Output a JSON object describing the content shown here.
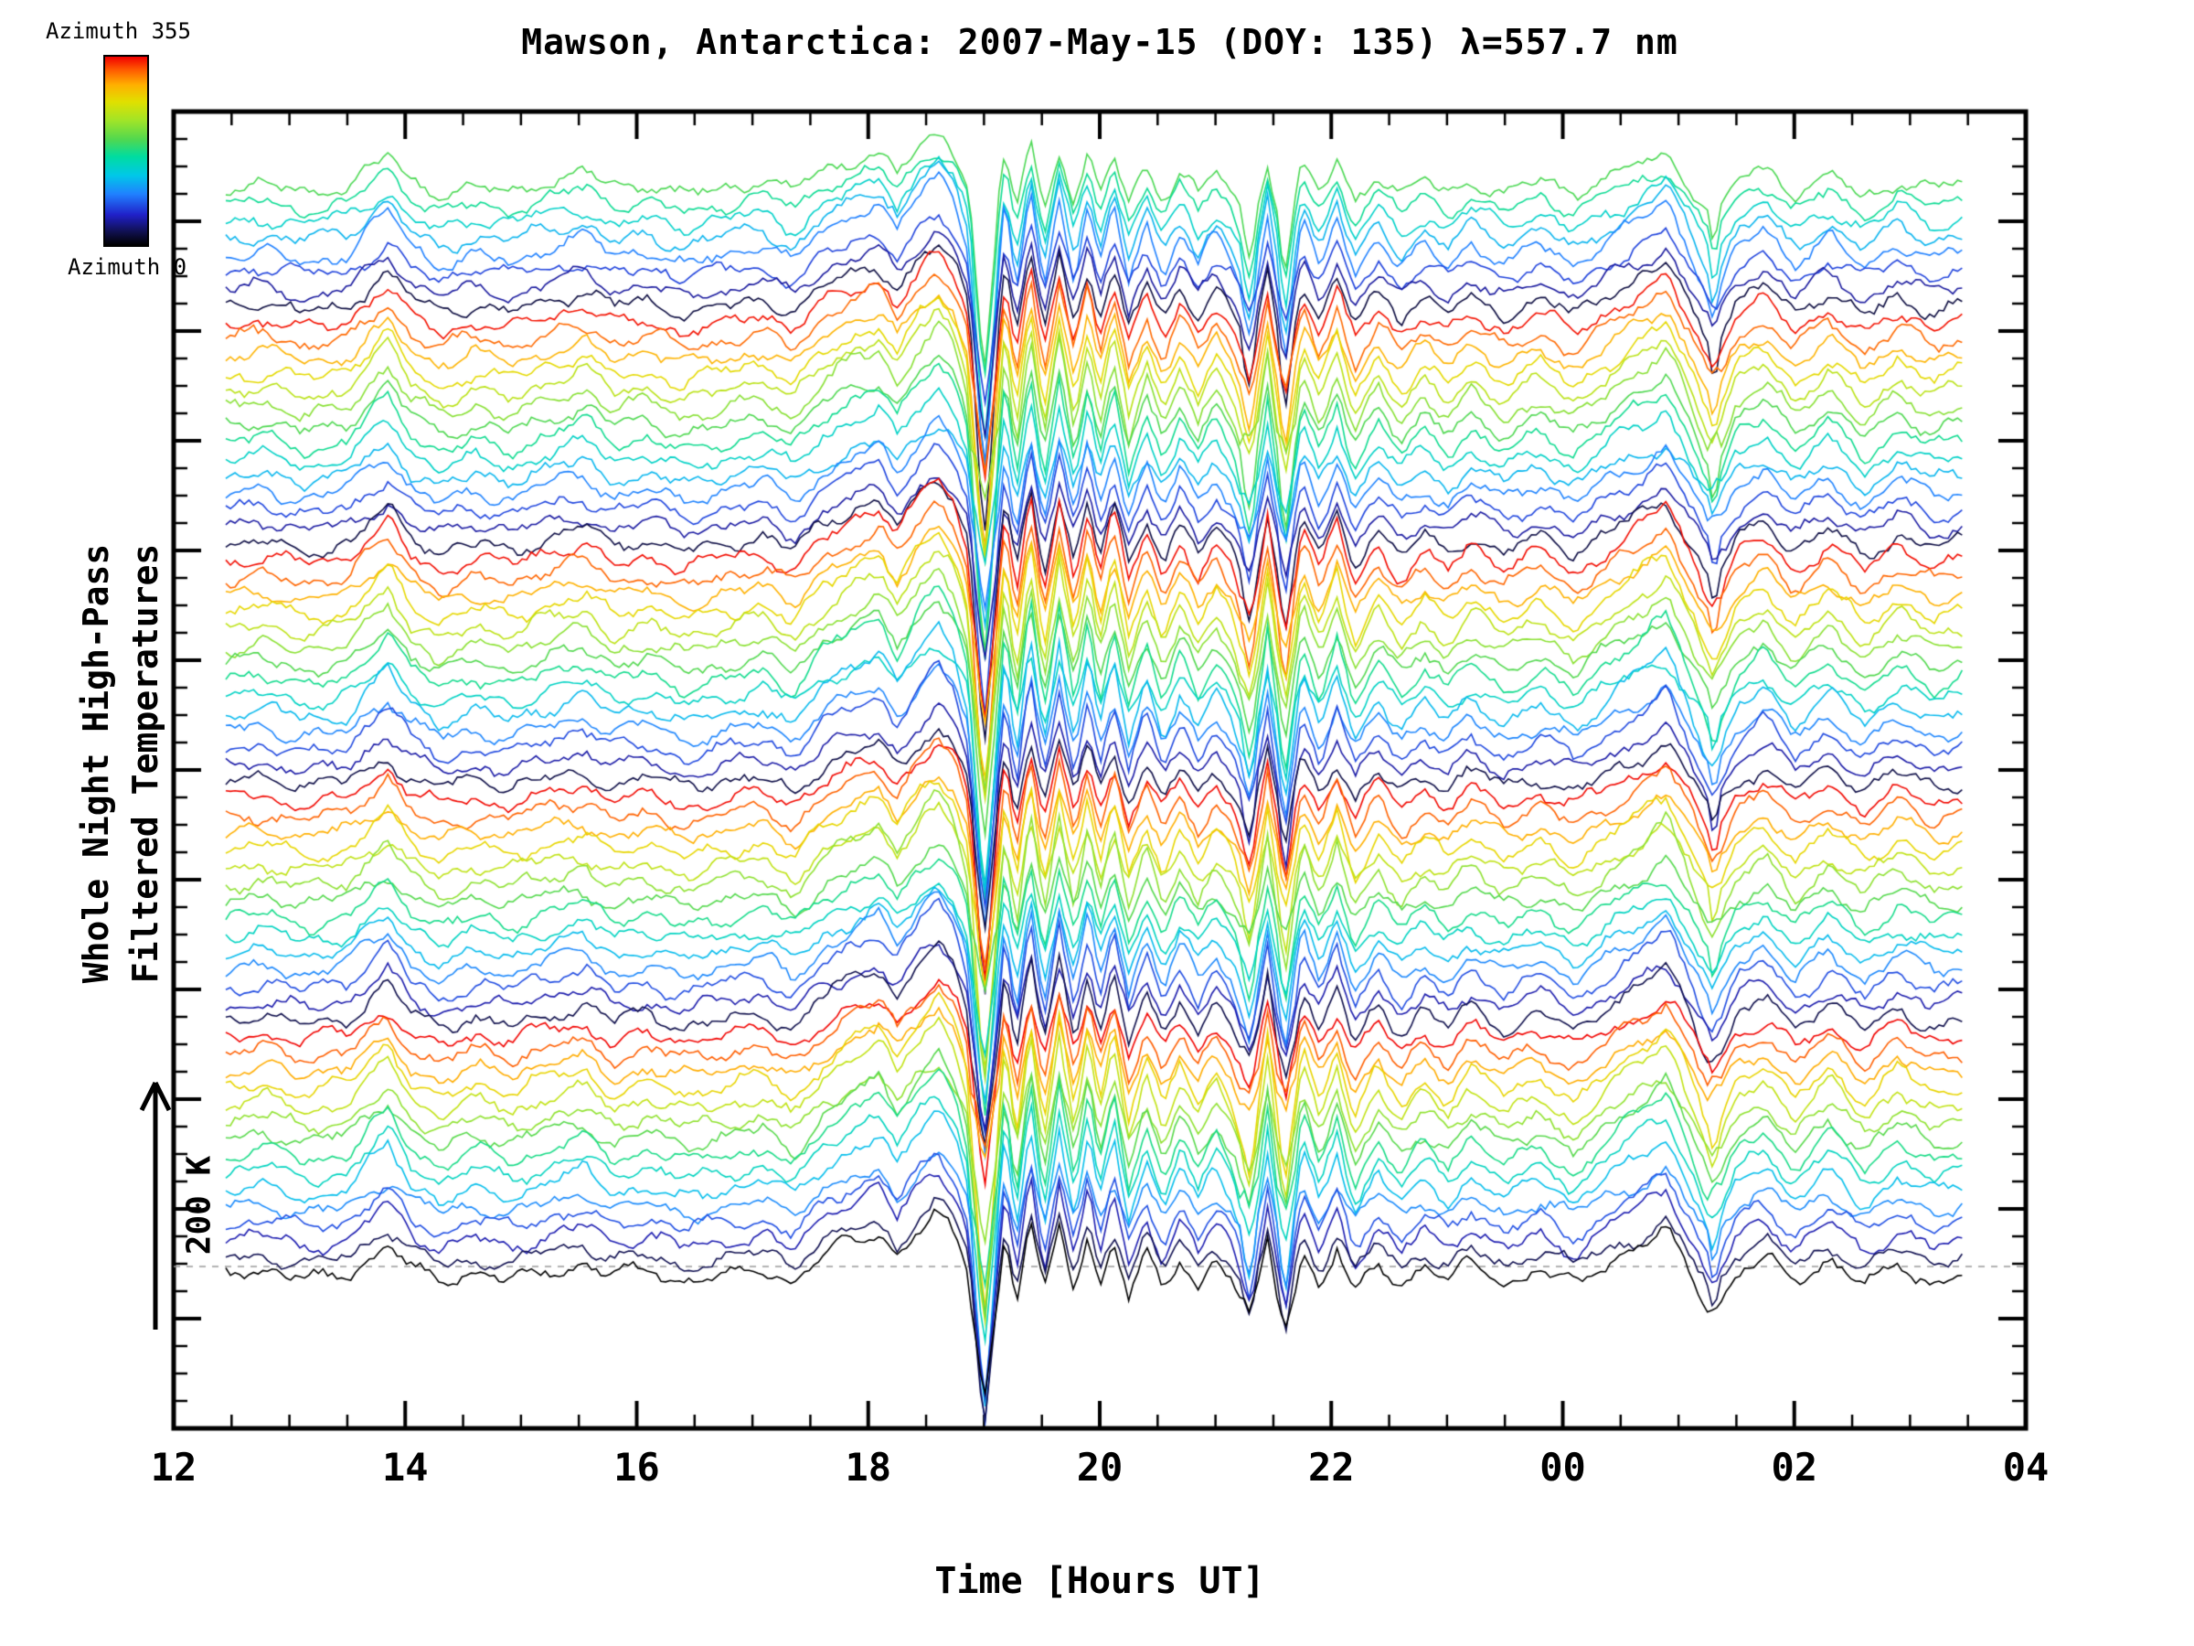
{
  "title": "Mawson, Antarctica: 2007-May-15 (DOY: 135) λ=557.7 nm",
  "colorbar": {
    "top_label": "Azimuth 355",
    "bottom_label": "Azimuth 0",
    "stops": [
      {
        "t": 0.0,
        "color": "#000000"
      },
      {
        "t": 0.07,
        "color": "#10104f"
      },
      {
        "t": 0.16,
        "color": "#2020c8"
      },
      {
        "t": 0.27,
        "color": "#2080ff"
      },
      {
        "t": 0.37,
        "color": "#00c8e8"
      },
      {
        "t": 0.47,
        "color": "#00dca0"
      },
      {
        "t": 0.56,
        "color": "#50d850"
      },
      {
        "t": 0.66,
        "color": "#a0e428"
      },
      {
        "t": 0.76,
        "color": "#e0e000"
      },
      {
        "t": 0.85,
        "color": "#ffb000"
      },
      {
        "t": 0.93,
        "color": "#ff5a00"
      },
      {
        "t": 1.0,
        "color": "#f00000"
      }
    ]
  },
  "y_axis": {
    "label_line1": "Whole Night High-Pass",
    "label_line2": "Filtered Temperatures"
  },
  "scale_bar": {
    "label": "200 K",
    "kelvin": 200
  },
  "x_axis": {
    "label": "Time [Hours UT]",
    "tick_labels": [
      "12",
      "14",
      "16",
      "18",
      "20",
      "22",
      "00",
      "02",
      "04"
    ],
    "tick_hours": [
      12,
      14,
      16,
      18,
      20,
      22,
      24,
      26,
      28
    ]
  },
  "chart_data": {
    "type": "line",
    "title": "Mawson, Antarctica: 2007-May-15 (DOY: 135) λ=557.7 nm",
    "xlabel": "Time [Hours UT]",
    "ylabel": "Whole Night High-Pass Filtered Temperatures",
    "x_range_hours_ut": [
      12,
      28
    ],
    "data_span_hours_ut": [
      12.45,
      27.45
    ],
    "x_tick_labels": [
      "12",
      "14",
      "16",
      "18",
      "20",
      "22",
      "00",
      "02",
      "04"
    ],
    "n_traces": 65,
    "azimuth_range_deg": [
      0,
      355
    ],
    "trace_vertical_offset_k": 15,
    "scale_bar_k": 200,
    "color_model": {
      "azimuth_top_trace": 200,
      "azimuth_step_per_trace": -25.625
    },
    "reference_line": {
      "style": "dashed",
      "color": "#999999",
      "position": "baseline of lowest trace"
    },
    "events": [
      {
        "time_ut": "13.9",
        "description": "small crest on all azimuth traces"
      },
      {
        "time_ut": "18.4-18.8",
        "description": "broad crest preceding main wave trough"
      },
      {
        "time_ut": "19.0",
        "description": "deep trough ~150-200 K seen on all azimuths"
      },
      {
        "time_ut": "19.0-20.5",
        "description": "quasi-periodic oscillations, ~15 min period"
      },
      {
        "time_ut": "21.3-21.7",
        "description": "two sharp troughs"
      },
      {
        "time_ut": "00.9",
        "description": "crest"
      },
      {
        "time_ut": "01.3",
        "description": "trough"
      }
    ],
    "base_signal_k": {
      "x_hours_ut": [
        12.45,
        12.8,
        13.1,
        13.5,
        13.85,
        14.05,
        14.3,
        14.6,
        14.9,
        15.2,
        15.55,
        15.8,
        16.1,
        16.4,
        16.8,
        17.1,
        17.35,
        17.6,
        17.9,
        18.1,
        18.25,
        18.45,
        18.6,
        18.75,
        18.85,
        18.95,
        19.0,
        19.08,
        19.18,
        19.28,
        19.4,
        19.52,
        19.65,
        19.78,
        19.9,
        20.0,
        20.12,
        20.25,
        20.4,
        20.55,
        20.7,
        20.85,
        21.0,
        21.15,
        21.3,
        21.45,
        21.6,
        21.75,
        21.9,
        22.05,
        22.2,
        22.4,
        22.6,
        22.8,
        23.0,
        23.2,
        23.5,
        23.8,
        24.1,
        24.4,
        24.7,
        24.9,
        25.1,
        25.3,
        25.5,
        25.75,
        26.0,
        26.3,
        26.6,
        26.9,
        27.2,
        27.45
      ],
      "y_kelvin": [
        0,
        4,
        -4,
        2,
        34,
        6,
        -8,
        2,
        -4,
        6,
        14,
        -2,
        4,
        -6,
        2,
        8,
        -8,
        18,
        36,
        44,
        20,
        50,
        66,
        44,
        10,
        -90,
        -150,
        -70,
        40,
        -30,
        55,
        -25,
        50,
        -15,
        45,
        -10,
        40,
        -20,
        25,
        -15,
        20,
        -10,
        15,
        -8,
        -55,
        35,
        -65,
        30,
        -10,
        30,
        -20,
        15,
        -12,
        8,
        -8,
        12,
        -6,
        8,
        -10,
        12,
        30,
        45,
        5,
        -40,
        5,
        20,
        -8,
        15,
        -10,
        12,
        -4,
        2
      ]
    }
  }
}
